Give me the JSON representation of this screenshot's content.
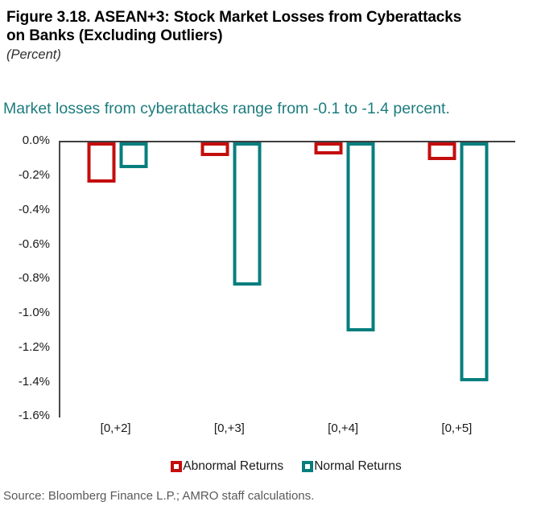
{
  "header": {
    "title": "Figure 3.18. ASEAN+3: Stock Market Losses from Cyberattacks on Banks (Excluding Outliers)",
    "subtitle": "(Percent)",
    "key_message": "Market losses from cyberattacks range from -0.1 to -1.4 percent."
  },
  "chart_data": {
    "type": "bar",
    "title": "Figure 3.18. ASEAN+3: Stock Market Losses from Cyberattacks on Banks (Excluding Outliers)",
    "units": "Percent",
    "categories": [
      "[0,+2]",
      "[0,+3]",
      "[0,+4]",
      "[0,+5]"
    ],
    "series": [
      {
        "name": "Abnormal Returns",
        "color": "#c40d0d",
        "values": [
          -0.23,
          -0.08,
          -0.07,
          -0.1
        ]
      },
      {
        "name": "Normal Returns",
        "color": "#077e7d",
        "values": [
          -0.15,
          -0.83,
          -1.1,
          -1.39
        ]
      }
    ],
    "xlabel": "",
    "ylabel": "",
    "ylim": [
      -1.6,
      0
    ],
    "yticks": [
      "0.0%",
      "-0.2%",
      "-0.4%",
      "-0.6%",
      "-0.8%",
      "-1.0%",
      "-1.2%",
      "-1.4%",
      "-1.6%"
    ],
    "bar_style": "outlined-hollow",
    "grid": false,
    "legend_position": "bottom"
  },
  "footer": {
    "source": "Source: Bloomberg Finance L.P.; AMRO staff calculations."
  },
  "colors": {
    "key_message_teal": "#1d7c7e",
    "series_red": "#c40d0d",
    "series_teal": "#077e7d",
    "axis_line": "#3f3f3f",
    "source_text": "#595959"
  }
}
